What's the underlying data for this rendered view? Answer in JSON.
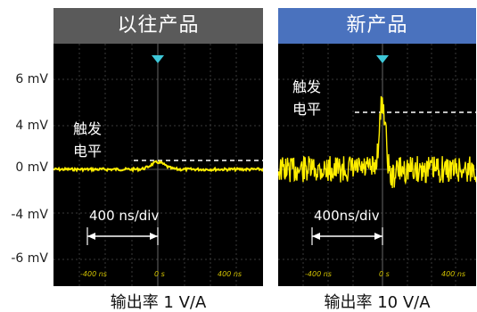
{
  "y_axis_labels": [
    "6 mV",
    "4 mV",
    "0 mV",
    "-4 mV",
    "-6 mV"
  ],
  "panels": {
    "left": {
      "header": "以往产品",
      "header_color": "#5a5a5a",
      "trigger_line1": "触发",
      "trigger_line2": "电平",
      "time_scale": "400 ns/div",
      "x_ticks": [
        "-400 ns",
        "0 s",
        "400 ns"
      ],
      "caption": "输出率 1 V/A"
    },
    "right": {
      "header": "新产品",
      "header_color": "#4a72be",
      "trigger_line1": "触发",
      "trigger_line2": "电平",
      "time_scale": "400ns/div",
      "x_ticks": [
        "-400 ns",
        "0 s",
        "400 ns"
      ],
      "caption": "输出率 10 V/A"
    }
  },
  "colors": {
    "trace": "#ffee00",
    "trigger_marker": "#3ec7d8",
    "grid": "#3a3a3a"
  }
}
